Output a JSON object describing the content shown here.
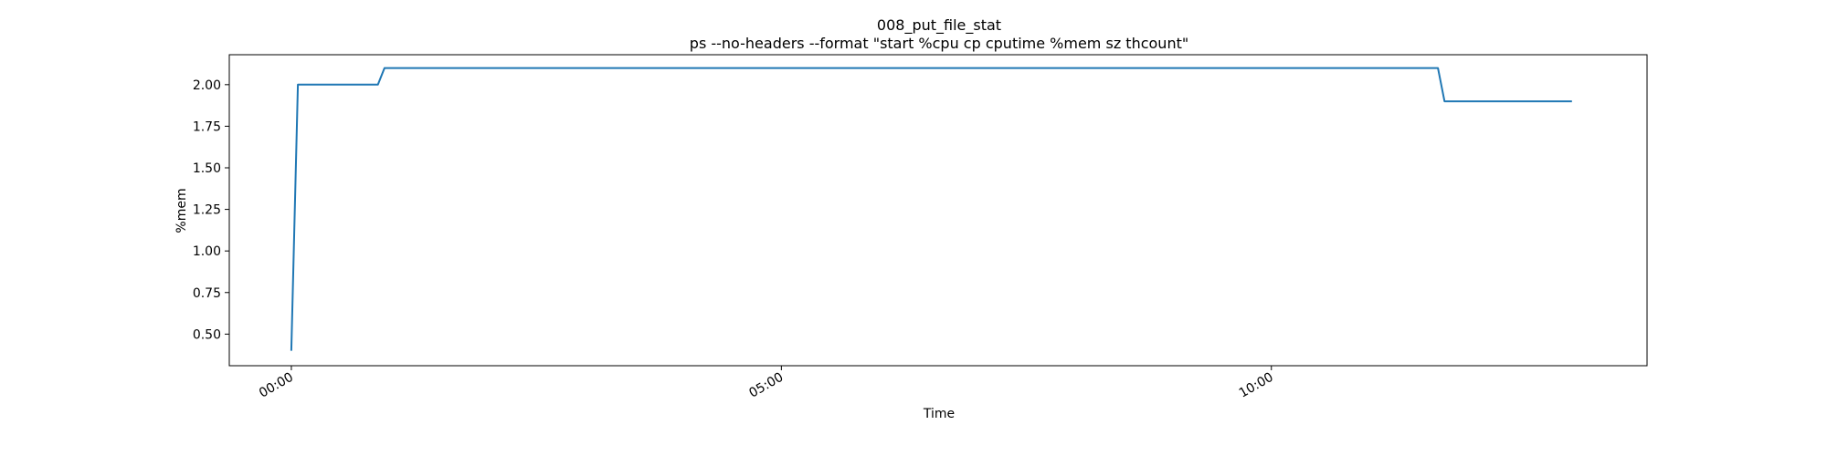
{
  "chart_data": {
    "type": "line",
    "title": "008_put_file_stat",
    "subtitle": "ps --no-headers --format \"start %cpu cp cputime %mem sz thcount\"",
    "xlabel": "Time",
    "ylabel": "%mem",
    "x_ticks": [
      "00:00",
      "05:00",
      "10:00"
    ],
    "y_ticks": [
      "0.50",
      "0.75",
      "1.00",
      "1.25",
      "1.50",
      "1.75",
      "2.00"
    ],
    "xlim": [
      "-00:38",
      "13:50"
    ],
    "ylim": [
      0.31,
      2.18
    ],
    "grid": false,
    "line_color": "#1f77b4",
    "series": [
      {
        "x": [
          "00:00",
          "00:04",
          "00:53",
          "00:57",
          "11:42",
          "11:46",
          "13:04"
        ],
        "values": [
          0.4,
          2.0,
          2.0,
          2.1,
          2.1,
          1.9,
          1.9
        ]
      }
    ]
  }
}
